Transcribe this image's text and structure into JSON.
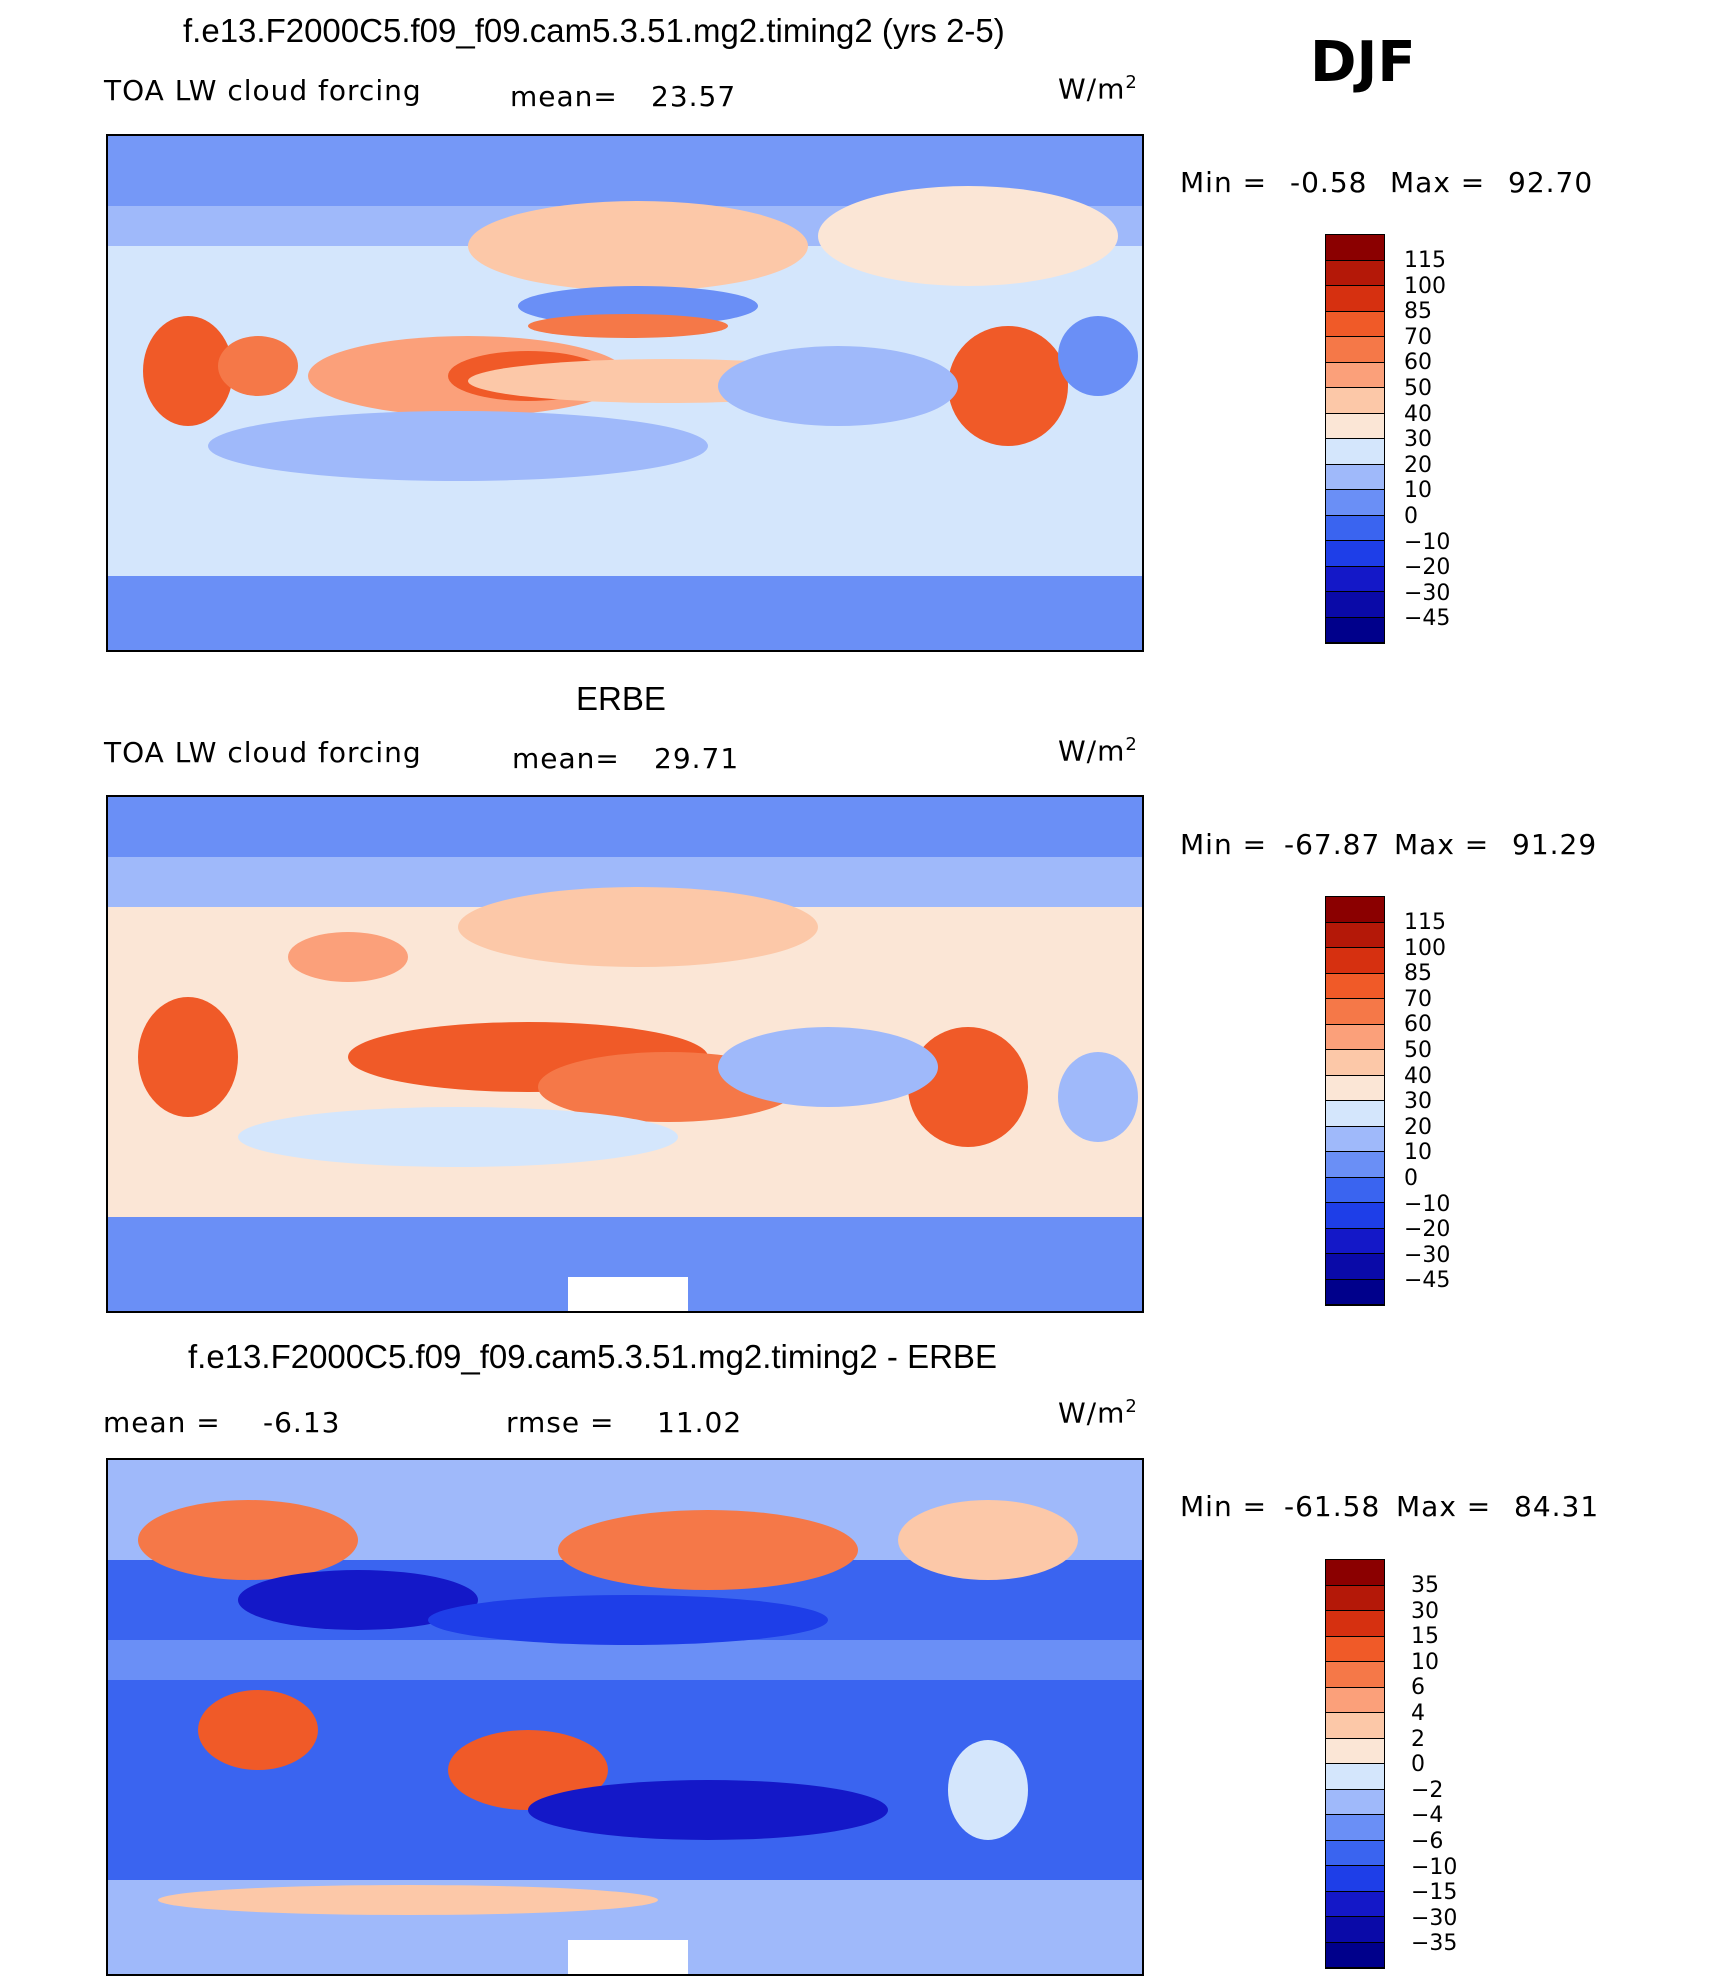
{
  "season": "DJF",
  "colors": {
    "abs_scale": [
      "#00008b",
      "#0a0aa8",
      "#1418c8",
      "#1e3ee8",
      "#3a64f0",
      "#6a8ff6",
      "#9fb9fa",
      "#d4e6fc",
      "#fbe6d6",
      "#fcc8a8",
      "#fba07a",
      "#f57848",
      "#f05a28",
      "#d63010",
      "#b41808",
      "#8b0000"
    ],
    "diff_scale": [
      "#00008b",
      "#0a0aa8",
      "#1418c8",
      "#1e3ee8",
      "#3a64f0",
      "#6a8ff6",
      "#9fb9fa",
      "#d4e6fc",
      "#fbe6d6",
      "#fcc8a8",
      "#fba07a",
      "#f57848",
      "#f05a28",
      "#d63010",
      "#b41808",
      "#8b0000"
    ],
    "coast": "#000000"
  },
  "panels": [
    {
      "title": "f.e13.F2000C5.f09_f09.cam5.3.51.mg2.timing2 (yrs 2-5)",
      "left_label": "TOA LW cloud forcing",
      "mean_label": "mean=",
      "mean_value": "23.57",
      "units": "W/m",
      "units_sup": "2",
      "min_label": "Min =",
      "min_value": "-0.58",
      "max_label": "Max =",
      "max_value": "92.70",
      "levels": [
        "115",
        "100",
        "85",
        "70",
        "60",
        "50",
        "40",
        "30",
        "20",
        "10",
        "0",
        "-10",
        "-20",
        "-30",
        "-45"
      ]
    },
    {
      "title": "ERBE",
      "left_label": "TOA LW cloud forcing",
      "mean_label": "mean=",
      "mean_value": "29.71",
      "units": "W/m",
      "units_sup": "2",
      "min_label": "Min =",
      "min_value": "-67.87",
      "max_label": "Max =",
      "max_value": "91.29",
      "levels": [
        "115",
        "100",
        "85",
        "70",
        "60",
        "50",
        "40",
        "30",
        "20",
        "10",
        "0",
        "-10",
        "-20",
        "-30",
        "-45"
      ]
    },
    {
      "title": "f.e13.F2000C5.f09_f09.cam5.3.51.mg2.timing2 - ERBE",
      "left_label": "mean =",
      "left_value": "-6.13",
      "rmse_label": "rmse =",
      "rmse_value": "11.02",
      "units": "W/m",
      "units_sup": "2",
      "min_label": "Min =",
      "min_value": "-61.58",
      "max_label": "Max =",
      "max_value": "84.31",
      "levels": [
        "35",
        "30",
        "15",
        "10",
        "6",
        "4",
        "2",
        "0",
        "-2",
        "-4",
        "-6",
        "-10",
        "-15",
        "-30",
        "-35"
      ]
    }
  ],
  "chart_data": [
    {
      "type": "heatmap",
      "title": "f.e13.F2000C5.f09_f09.cam5.3.51.mg2.timing2 (yrs 2-5)",
      "subtitle": "TOA LW cloud forcing",
      "units": "W/m2",
      "mean": 23.57,
      "min": -0.58,
      "max": 92.7,
      "contour_levels": [
        -45,
        -30,
        -20,
        -10,
        0,
        10,
        20,
        30,
        40,
        50,
        60,
        70,
        85,
        100,
        115
      ],
      "domain": "global lon 0-360, lat -90 to 90"
    },
    {
      "type": "heatmap",
      "title": "ERBE",
      "subtitle": "TOA LW cloud forcing",
      "units": "W/m2",
      "mean": 29.71,
      "min": -67.87,
      "max": 91.29,
      "contour_levels": [
        -45,
        -30,
        -20,
        -10,
        0,
        10,
        20,
        30,
        40,
        50,
        60,
        70,
        85,
        100,
        115
      ],
      "domain": "global lon 0-360, lat -90 to 90"
    },
    {
      "type": "heatmap",
      "title": "f.e13.F2000C5.f09_f09.cam5.3.51.mg2.timing2 - ERBE",
      "units": "W/m2",
      "mean": -6.13,
      "rmse": 11.02,
      "min": -61.58,
      "max": 84.31,
      "contour_levels": [
        -35,
        -30,
        -15,
        -10,
        -6,
        -4,
        -2,
        0,
        2,
        4,
        6,
        10,
        15,
        30,
        35
      ],
      "domain": "global lon 0-360, lat -90 to 90"
    }
  ]
}
